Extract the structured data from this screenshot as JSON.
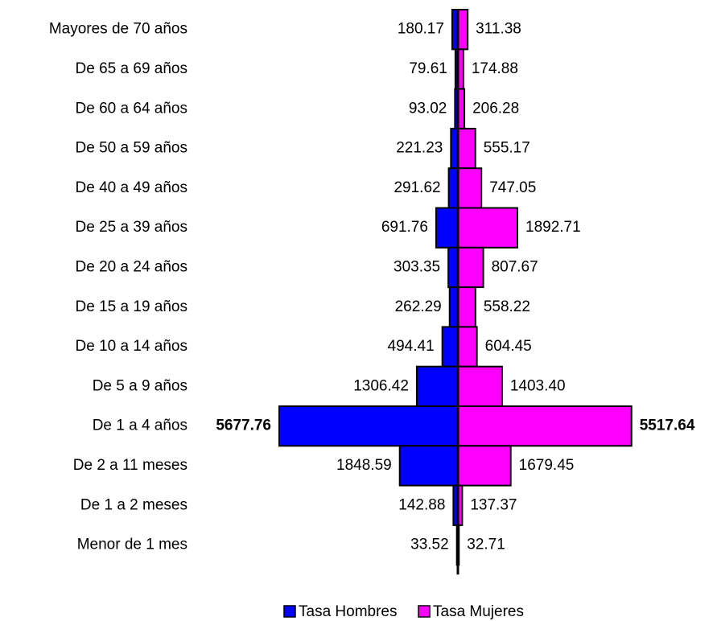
{
  "chart_data": {
    "type": "pyramid",
    "categories": [
      "Mayores de 70 años",
      "De 65 a 69 años",
      "De 60 a 64 años",
      "De 50 a 59 años",
      "De 40 a 49 años",
      "De 25 a 39 años",
      "De 20 a 24 años",
      "De 15 a 19 años",
      "De 10 a 14 años",
      "De 5 a 9 años",
      "De 1 a 4 años",
      "De 2 a 11 meses",
      "De 1 a 2 meses",
      "Menor de 1 mes"
    ],
    "series": [
      {
        "name": "Tasa Hombres",
        "color": "#0000ff",
        "values": [
          180.17,
          79.61,
          93.02,
          221.23,
          291.62,
          691.76,
          303.35,
          262.29,
          494.41,
          1306.42,
          5677.76,
          1848.59,
          142.88,
          33.52
        ],
        "value_labels": [
          "180.17",
          "79.61",
          "93.02",
          "221.23",
          "291.62",
          "691.76",
          "303.35",
          "262.29",
          "494.41",
          "1306.42",
          "5677.76",
          "1848.59",
          "142.88",
          "33.52"
        ]
      },
      {
        "name": "Tasa Mujeres",
        "color": "#ff00ff",
        "values": [
          311.38,
          174.88,
          206.28,
          555.17,
          747.05,
          1892.71,
          807.67,
          558.22,
          604.45,
          1403.4,
          5517.64,
          1679.45,
          137.37,
          32.71
        ],
        "value_labels": [
          "311.38",
          "174.88",
          "206.28",
          "555.17",
          "747.05",
          "1892.71",
          "807.67",
          "558.22",
          "604.45",
          "1403.40",
          "5517.64",
          "1679.45",
          "137.37",
          "32.71"
        ]
      }
    ]
  }
}
